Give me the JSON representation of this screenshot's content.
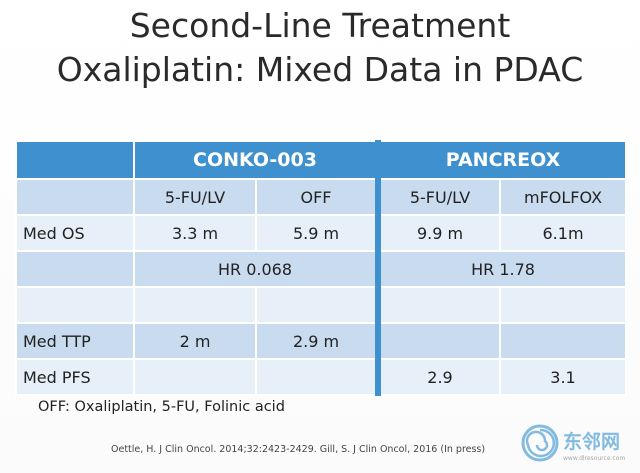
{
  "slide": {
    "title_line1": "Second-Line Treatment",
    "title_line2": "Oxaliplatin: Mixed Data in PDAC"
  },
  "table": {
    "trial_headers": [
      "CONKO-003",
      "PANCREOX"
    ],
    "arm_headers": [
      "5-FU/LV",
      "OFF",
      "5-FU/LV",
      "mFOLFOX"
    ],
    "rows": [
      {
        "label": "Med OS",
        "values": [
          "3.3 m",
          "5.9 m",
          "9.9 m",
          "6.1m"
        ]
      },
      {
        "label": "",
        "hr": [
          "HR 0.068",
          "HR 1.78"
        ]
      },
      {
        "label": "",
        "values": [
          "",
          "",
          "",
          ""
        ]
      },
      {
        "label": "Med TTP",
        "values": [
          "2 m",
          "2.9 m",
          "",
          ""
        ]
      },
      {
        "label": "Med PFS",
        "values": [
          "",
          "",
          "2.9",
          "3.1"
        ]
      }
    ]
  },
  "footnote": "OFF: Oxaliplatin, 5-FU, Folinic acid",
  "citation": "Oettle, H. J Clin Oncol. 2014;32:2423-2429.  Gill, S. J Clin Oncol, 2016 (In press)",
  "watermark": {
    "text": "东邻网",
    "subtext": "www.dlresource.com",
    "icon": "spiral-logo-icon"
  },
  "colors": {
    "header_blue": "#3f90cf",
    "band_row": "#c9dcef",
    "light_row": "#e7eff8"
  }
}
